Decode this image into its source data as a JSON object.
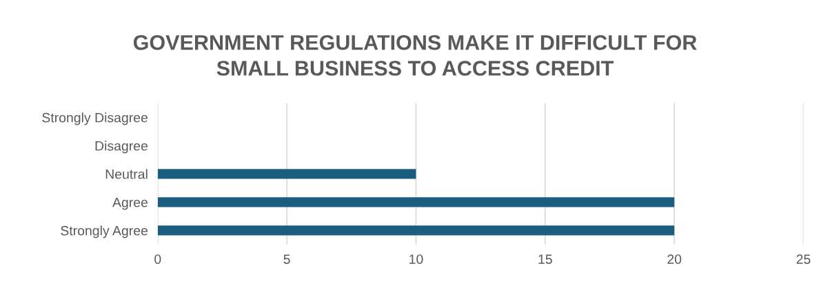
{
  "chart_data": {
    "type": "bar",
    "orientation": "horizontal",
    "title": "GOVERNMENT REGULATIONS MAKE IT DIFFICULT FOR\nSMALL BUSINESS TO ACCESS CREDIT",
    "categories": [
      "Strongly Disagree",
      "Disagree",
      "Neutral",
      "Agree",
      "Strongly Agree"
    ],
    "values": [
      0,
      0,
      10,
      20,
      20
    ],
    "color": "#1b5e80",
    "xlim": [
      0,
      25
    ],
    "xticks": [
      0,
      5,
      10,
      15,
      20,
      25
    ],
    "grid": "x"
  }
}
